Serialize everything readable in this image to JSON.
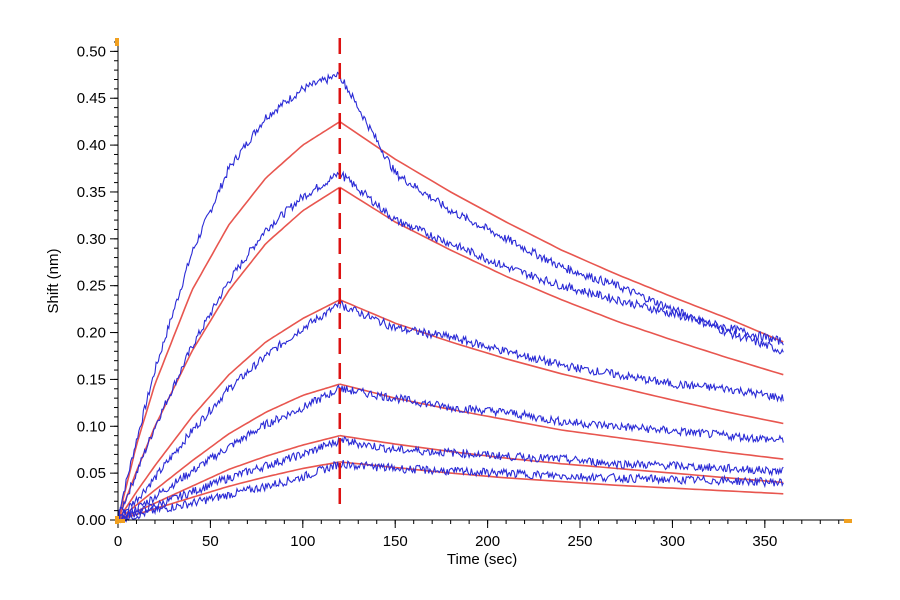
{
  "chart_data": {
    "type": "line",
    "title": "",
    "xlabel": "Time (sec)",
    "ylabel": "Shift (nm)",
    "xlim": [
      0,
      395
    ],
    "ylim": [
      0,
      0.51
    ],
    "xticks": [
      "0",
      "50",
      "100",
      "150",
      "200",
      "250",
      "300",
      "350"
    ],
    "xtick_values": [
      0,
      50,
      100,
      150,
      200,
      250,
      300,
      350
    ],
    "yticks": [
      "0.00",
      "0.05",
      "0.10",
      "0.15",
      "0.20",
      "0.25",
      "0.30",
      "0.35",
      "0.40",
      "0.45",
      "0.50"
    ],
    "ytick_values": [
      0,
      0.05,
      0.1,
      0.15,
      0.2,
      0.25,
      0.3,
      0.35,
      0.4,
      0.45,
      0.5
    ],
    "x_minor_step": 10,
    "y_minor_step": 0.01,
    "grid": false,
    "legend": "none",
    "association_end_time": 120,
    "end_time": 360,
    "colors": {
      "measured": "#2b2bd6",
      "fit": "#e8564f",
      "marker": "#dd1111",
      "axis": "#000000",
      "accent": "#f0a020"
    },
    "measured_series": [
      {
        "x": [
          0,
          10,
          20,
          40,
          60,
          80,
          100,
          120
        ],
        "y": [
          0.005,
          0.085,
          0.16,
          0.285,
          0.375,
          0.43,
          0.46,
          0.475
        ]
      },
      {
        "x": [
          0,
          10,
          20,
          40,
          60,
          80,
          100,
          120
        ],
        "y": [
          0.003,
          0.05,
          0.1,
          0.185,
          0.255,
          0.31,
          0.345,
          0.37
        ]
      },
      {
        "x": [
          0,
          10,
          20,
          40,
          60,
          80,
          100,
          120
        ],
        "y": [
          0.002,
          0.022,
          0.045,
          0.095,
          0.14,
          0.175,
          0.205,
          0.23
        ]
      },
      {
        "x": [
          0,
          10,
          20,
          40,
          60,
          80,
          100,
          120
        ],
        "y": [
          0.002,
          0.012,
          0.025,
          0.052,
          0.078,
          0.102,
          0.12,
          0.14
        ]
      },
      {
        "x": [
          0,
          10,
          20,
          40,
          60,
          80,
          100,
          120
        ],
        "y": [
          0.001,
          0.008,
          0.015,
          0.03,
          0.045,
          0.058,
          0.07,
          0.085
        ]
      },
      {
        "x": [
          0,
          10,
          20,
          40,
          60,
          80,
          100,
          120
        ],
        "y": [
          0.001,
          0.005,
          0.01,
          0.018,
          0.027,
          0.036,
          0.046,
          0.06
        ]
      },
      {
        "x": [
          120,
          150,
          180,
          210,
          240,
          270,
          300,
          330,
          360
        ],
        "y": [
          0.475,
          0.37,
          0.33,
          0.3,
          0.27,
          0.25,
          0.225,
          0.2,
          0.18
        ]
      },
      {
        "x": [
          120,
          150,
          180,
          210,
          240,
          270,
          300,
          330,
          360
        ],
        "y": [
          0.37,
          0.32,
          0.295,
          0.27,
          0.25,
          0.235,
          0.22,
          0.205,
          0.19
        ]
      },
      {
        "x": [
          120,
          150,
          180,
          210,
          240,
          270,
          300,
          330,
          360
        ],
        "y": [
          0.23,
          0.205,
          0.195,
          0.18,
          0.165,
          0.155,
          0.145,
          0.14,
          0.13
        ]
      },
      {
        "x": [
          120,
          150,
          180,
          210,
          240,
          270,
          300,
          330,
          360
        ],
        "y": [
          0.14,
          0.13,
          0.12,
          0.115,
          0.105,
          0.1,
          0.095,
          0.09,
          0.085
        ]
      },
      {
        "x": [
          120,
          150,
          180,
          210,
          240,
          270,
          300,
          330,
          360
        ],
        "y": [
          0.085,
          0.075,
          0.072,
          0.068,
          0.065,
          0.06,
          0.058,
          0.055,
          0.052
        ]
      },
      {
        "x": [
          120,
          150,
          180,
          210,
          240,
          270,
          300,
          330,
          360
        ],
        "y": [
          0.06,
          0.055,
          0.052,
          0.05,
          0.047,
          0.045,
          0.043,
          0.042,
          0.04
        ]
      }
    ],
    "fit_series": [
      {
        "x": [
          0,
          10,
          20,
          40,
          60,
          80,
          100,
          120
        ],
        "y": [
          0.0,
          0.08,
          0.145,
          0.245,
          0.315,
          0.365,
          0.4,
          0.425
        ]
      },
      {
        "x": [
          0,
          10,
          20,
          40,
          60,
          80,
          100,
          120
        ],
        "y": [
          0.0,
          0.052,
          0.1,
          0.18,
          0.245,
          0.295,
          0.33,
          0.355
        ]
      },
      {
        "x": [
          0,
          10,
          20,
          40,
          60,
          80,
          100,
          120
        ],
        "y": [
          0.0,
          0.03,
          0.058,
          0.11,
          0.155,
          0.19,
          0.215,
          0.235
        ]
      },
      {
        "x": [
          0,
          10,
          20,
          40,
          60,
          80,
          100,
          120
        ],
        "y": [
          0.0,
          0.016,
          0.032,
          0.063,
          0.092,
          0.115,
          0.133,
          0.145
        ]
      },
      {
        "x": [
          0,
          10,
          20,
          40,
          60,
          80,
          100,
          120
        ],
        "y": [
          0.0,
          0.009,
          0.018,
          0.036,
          0.054,
          0.068,
          0.08,
          0.09
        ]
      },
      {
        "x": [
          0,
          10,
          20,
          40,
          60,
          80,
          100,
          120
        ],
        "y": [
          0.0,
          0.006,
          0.012,
          0.024,
          0.036,
          0.046,
          0.055,
          0.062
        ]
      },
      {
        "x": [
          120,
          150,
          180,
          210,
          240,
          270,
          300,
          330,
          360
        ],
        "y": [
          0.425,
          0.385,
          0.35,
          0.318,
          0.288,
          0.262,
          0.238,
          0.215,
          0.19
        ]
      },
      {
        "x": [
          120,
          150,
          180,
          210,
          240,
          270,
          300,
          330,
          360
        ],
        "y": [
          0.355,
          0.318,
          0.288,
          0.26,
          0.235,
          0.212,
          0.192,
          0.173,
          0.155
        ]
      },
      {
        "x": [
          120,
          150,
          180,
          210,
          240,
          270,
          300,
          330,
          360
        ],
        "y": [
          0.235,
          0.21,
          0.19,
          0.172,
          0.156,
          0.142,
          0.128,
          0.115,
          0.103
        ]
      },
      {
        "x": [
          120,
          150,
          180,
          210,
          240,
          270,
          300,
          330,
          360
        ],
        "y": [
          0.145,
          0.13,
          0.118,
          0.107,
          0.096,
          0.088,
          0.08,
          0.072,
          0.065
        ]
      },
      {
        "x": [
          120,
          150,
          180,
          210,
          240,
          270,
          300,
          330,
          360
        ],
        "y": [
          0.09,
          0.081,
          0.073,
          0.066,
          0.06,
          0.055,
          0.05,
          0.045,
          0.04
        ]
      },
      {
        "x": [
          120,
          150,
          180,
          210,
          240,
          270,
          300,
          330,
          360
        ],
        "y": [
          0.062,
          0.056,
          0.05,
          0.045,
          0.041,
          0.037,
          0.034,
          0.031,
          0.028
        ]
      }
    ]
  }
}
